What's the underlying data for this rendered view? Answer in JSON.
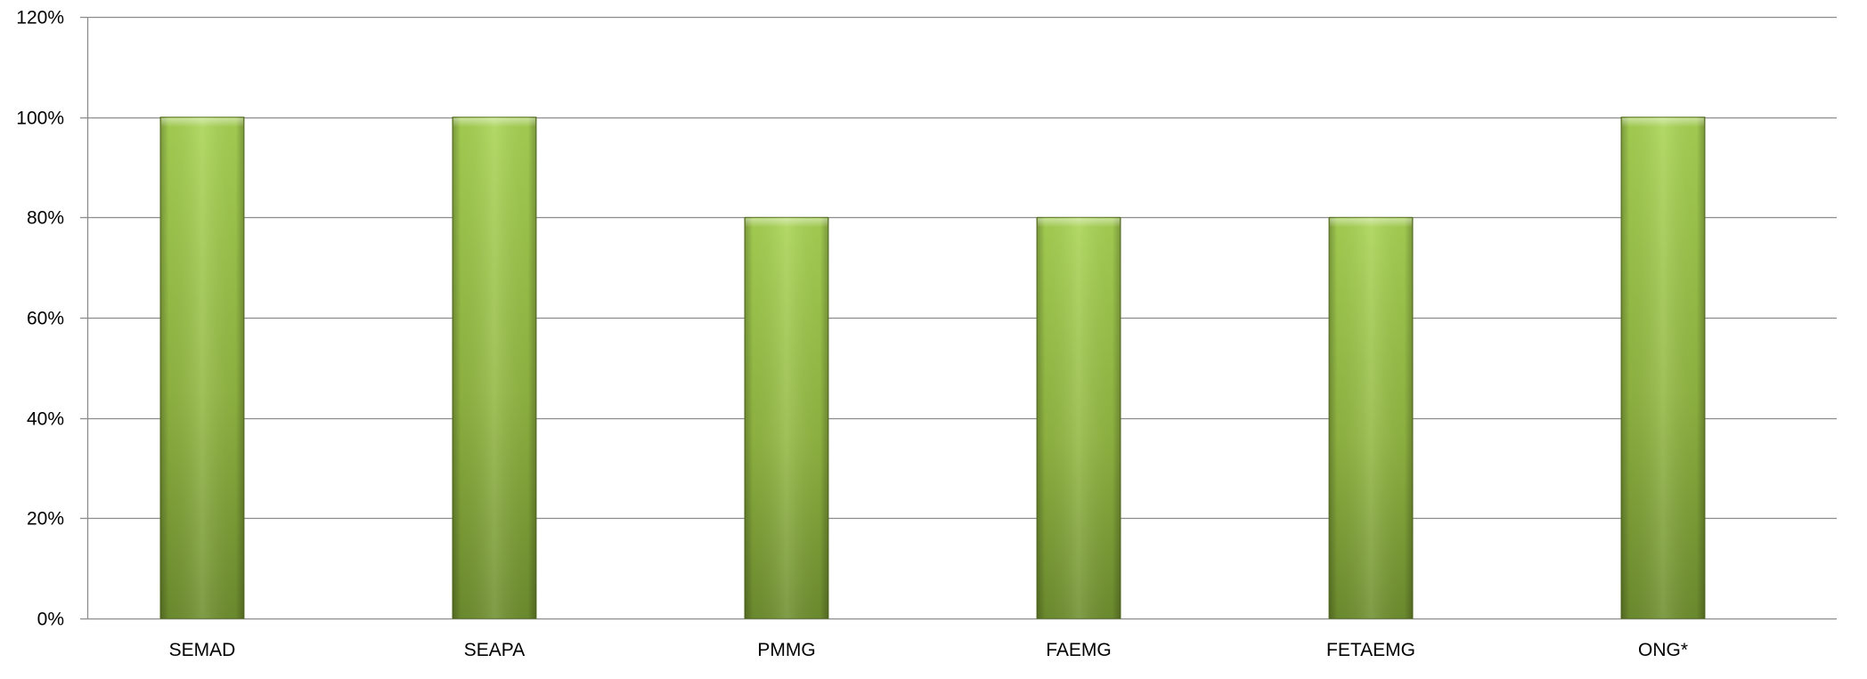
{
  "chart_data": {
    "type": "bar",
    "categories": [
      "SEMAD",
      "SEAPA",
      "PMMG",
      "FAEMG",
      "FETAEMG",
      "ONG*"
    ],
    "series": [
      {
        "values": [
          100,
          100,
          80,
          80,
          80,
          100
        ]
      }
    ],
    "title": "",
    "xlabel": "",
    "ylabel": "",
    "ylim": [
      0,
      120
    ],
    "y_ticks": [
      0,
      20,
      40,
      60,
      80,
      100,
      120
    ],
    "y_tick_labels": [
      "0%",
      "20%",
      "40%",
      "60%",
      "80%",
      "100%",
      "120%"
    ],
    "grid": true,
    "legend": "none",
    "colors": {
      "bar_light": "#a9d454",
      "bar_mid": "#93b843",
      "bar_dark": "#6f8f2f",
      "bar_edge": "#5f7a27",
      "grid": "#8c8c8c"
    }
  }
}
